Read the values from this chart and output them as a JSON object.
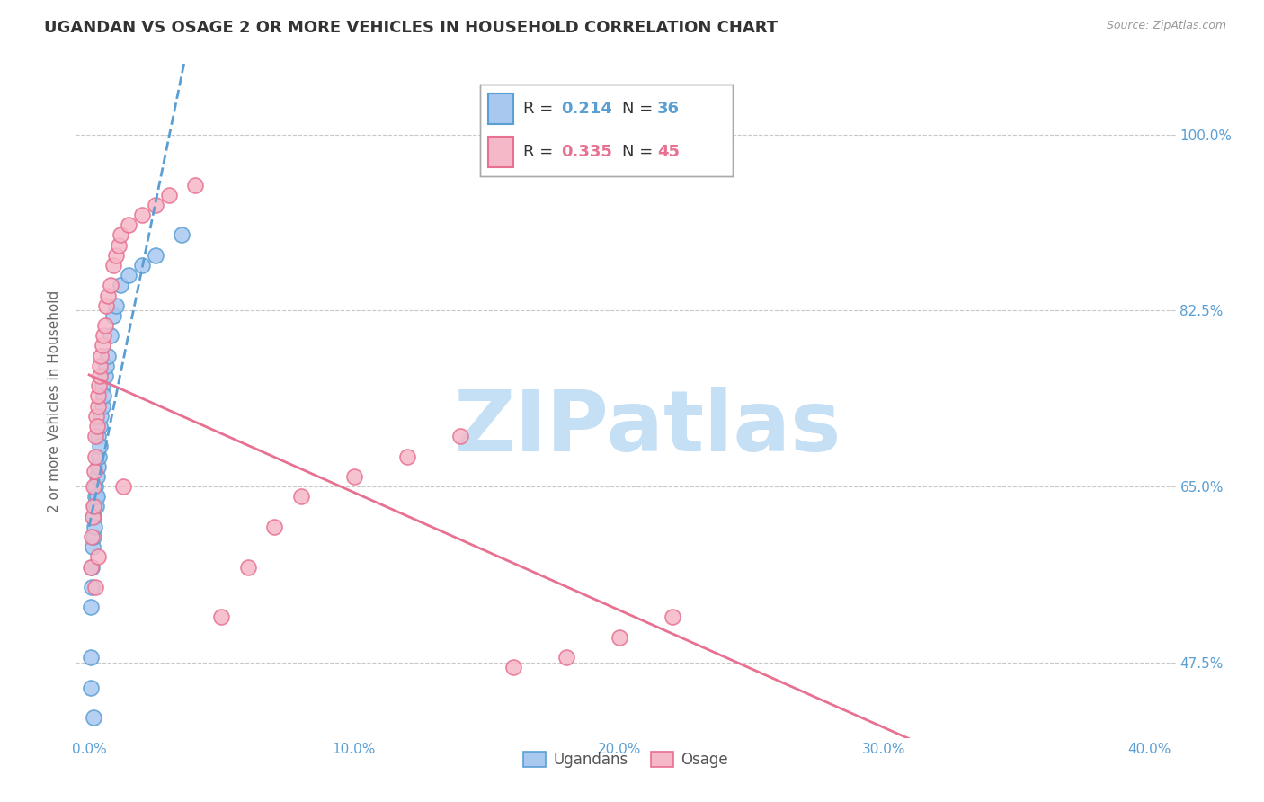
{
  "title": "UGANDAN VS OSAGE 2 OR MORE VEHICLES IN HOUSEHOLD CORRELATION CHART",
  "source": "Source: ZipAtlas.com",
  "ylabel": "2 or more Vehicles in Household",
  "x_tick_vals": [
    0.0,
    10.0,
    20.0,
    30.0,
    40.0
  ],
  "x_tick_labels": [
    "0.0%",
    "10.0%",
    "20.0%",
    "30.0%",
    "40.0%"
  ],
  "y_ticks": [
    47.5,
    65.0,
    82.5,
    100.0
  ],
  "y_tick_labels": [
    "47.5%",
    "65.0%",
    "82.5%",
    "100.0%"
  ],
  "xlim": [
    -0.5,
    41.0
  ],
  "ylim": [
    40.0,
    107.0
  ],
  "watermark": "ZIPatlas",
  "watermark_color": "#c5dff5",
  "ugandan_fill_color": "#a8c8f0",
  "ugandan_edge_color": "#5a9fd4",
  "osage_fill_color": "#f5b8c8",
  "osage_edge_color": "#e87090",
  "ugandan_line_color": "#5a9fd4",
  "osage_line_color": "#e87090",
  "background_color": "#ffffff",
  "grid_color": "#c8c8c8",
  "axis_tick_color": "#5a9fd4",
  "title_color": "#333333",
  "title_fontsize": 13,
  "ylabel_fontsize": 11,
  "tick_fontsize": 11,
  "ugandan_x": [
    0.05,
    0.08,
    0.1,
    0.1,
    0.12,
    0.15,
    0.18,
    0.2,
    0.2,
    0.22,
    0.25,
    0.28,
    0.3,
    0.3,
    0.32,
    0.35,
    0.38,
    0.4,
    0.42,
    0.45,
    0.5,
    0.5,
    0.55,
    0.6,
    0.65,
    0.7,
    0.8,
    0.9,
    1.0,
    1.2,
    1.5,
    2.0,
    2.5,
    3.5,
    0.05,
    0.15
  ],
  "ugandan_y": [
    48.0,
    53.0,
    57.0,
    55.0,
    59.0,
    60.0,
    62.0,
    63.0,
    61.0,
    64.0,
    65.0,
    63.0,
    66.0,
    64.0,
    67.0,
    70.0,
    68.0,
    69.0,
    71.0,
    72.0,
    73.0,
    75.0,
    74.0,
    76.0,
    77.0,
    78.0,
    80.0,
    82.0,
    83.0,
    85.0,
    86.0,
    87.0,
    88.0,
    90.0,
    45.0,
    42.0
  ],
  "osage_x": [
    0.05,
    0.1,
    0.12,
    0.15,
    0.18,
    0.2,
    0.22,
    0.25,
    0.28,
    0.3,
    0.32,
    0.35,
    0.38,
    0.4,
    0.42,
    0.45,
    0.5,
    0.55,
    0.6,
    0.65,
    0.7,
    0.8,
    0.9,
    1.0,
    1.1,
    1.2,
    1.5,
    2.0,
    2.5,
    3.0,
    4.0,
    5.0,
    6.0,
    7.0,
    8.0,
    10.0,
    12.0,
    14.0,
    16.0,
    18.0,
    20.0,
    22.0,
    1.3,
    0.25,
    0.35
  ],
  "osage_y": [
    57.0,
    60.0,
    62.0,
    63.0,
    65.0,
    66.5,
    68.0,
    70.0,
    72.0,
    71.0,
    73.0,
    74.0,
    75.0,
    76.0,
    77.0,
    78.0,
    79.0,
    80.0,
    81.0,
    83.0,
    84.0,
    85.0,
    87.0,
    88.0,
    89.0,
    90.0,
    91.0,
    92.0,
    93.0,
    94.0,
    95.0,
    52.0,
    57.0,
    61.0,
    64.0,
    66.0,
    68.0,
    70.0,
    47.0,
    48.0,
    50.0,
    52.0,
    65.0,
    55.0,
    58.0
  ],
  "legend_R_ugandan": "0.214",
  "legend_N_ugandan": "36",
  "legend_R_osage": "0.335",
  "legend_N_osage": "45"
}
